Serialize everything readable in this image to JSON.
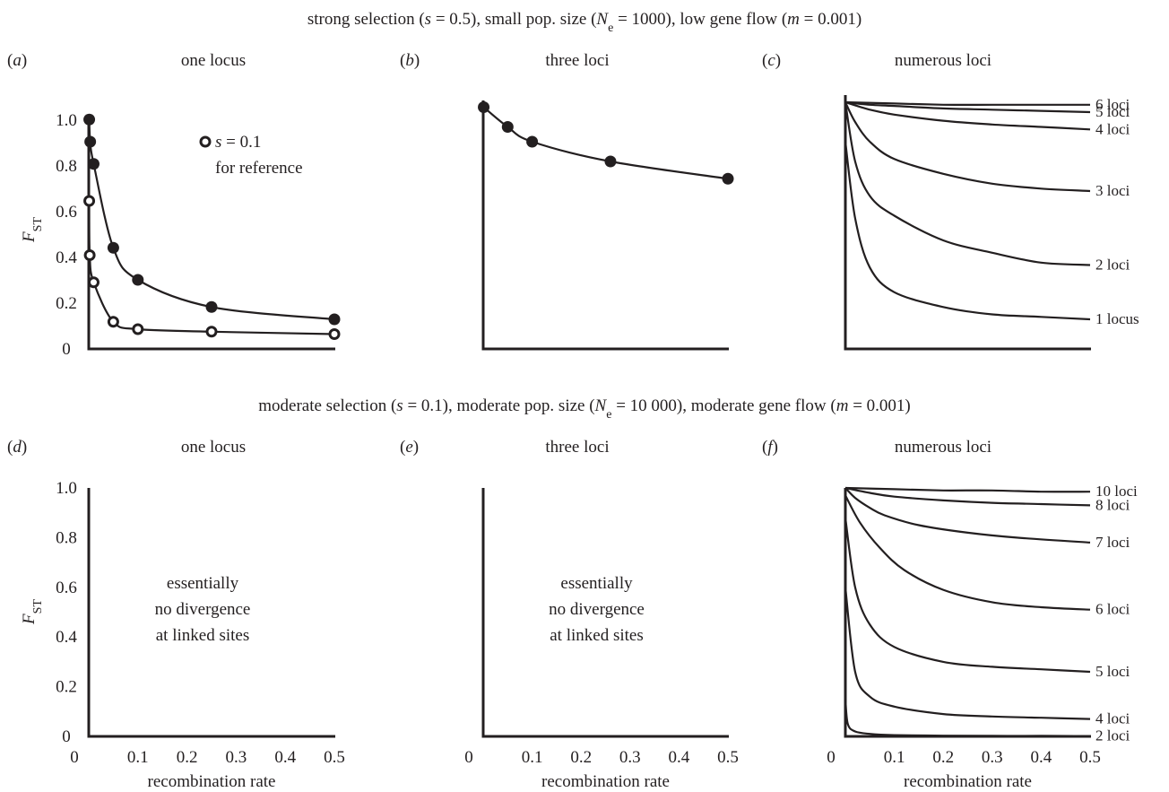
{
  "figure": {
    "row1_title": "strong selection (s = 0.5), small pop. size (Ne = 1000), low gene flow (m = 0.001)",
    "row2_title": "moderate selection (s = 0.1), moderate pop. size (Ne = 10 000), moderate gene flow (m = 0.001)"
  },
  "chart_data": [
    {
      "panel": "(a)",
      "title": "one locus",
      "type": "scatter",
      "ylabel": "FST",
      "xlabel": "",
      "xlim": [
        0,
        0.5
      ],
      "ylim": [
        0,
        1.0
      ],
      "yticks": [
        "0",
        "0.2",
        "0.4",
        "0.6",
        "0.8",
        "1.0"
      ],
      "xticks": [],
      "annotation": [
        "s = 0.1",
        "for reference"
      ],
      "series": [
        {
          "name": "",
          "marker": "filled",
          "x": [
            0.001,
            0.003,
            0.01,
            0.05,
            0.1,
            0.25,
            0.5
          ],
          "y": [
            0.93,
            0.84,
            0.75,
            0.41,
            0.28,
            0.17,
            0.12
          ]
        },
        {
          "name": "s = 0.1",
          "marker": "open",
          "x": [
            0.001,
            0.002,
            0.01,
            0.05,
            0.1,
            0.25,
            0.5
          ],
          "y": [
            0.6,
            0.38,
            0.27,
            0.11,
            0.08,
            0.07,
            0.06
          ]
        }
      ]
    },
    {
      "panel": "(b)",
      "title": "three loci",
      "type": "scatter",
      "xlim": [
        0,
        0.5
      ],
      "ylim": [
        0,
        1.0
      ],
      "series": [
        {
          "name": "",
          "marker": "filled",
          "x": [
            0.001,
            0.05,
            0.1,
            0.26,
            0.5
          ],
          "y": [
            0.98,
            0.9,
            0.84,
            0.76,
            0.69
          ]
        }
      ]
    },
    {
      "panel": "(c)",
      "title": "numerous loci",
      "type": "line",
      "xlim": [
        0,
        0.5
      ],
      "ylim": [
        0,
        1.0
      ],
      "series": [
        {
          "name": "6 loci",
          "x": [
            0,
            0.1,
            0.2,
            0.3,
            0.4,
            0.5
          ],
          "y": [
            1.0,
            0.995,
            0.99,
            0.99,
            0.99,
            0.99
          ]
        },
        {
          "name": "5 loci",
          "x": [
            0,
            0.05,
            0.1,
            0.2,
            0.3,
            0.4,
            0.5
          ],
          "y": [
            1.0,
            0.99,
            0.985,
            0.975,
            0.97,
            0.965,
            0.96
          ]
        },
        {
          "name": "4 loci",
          "x": [
            0,
            0.05,
            0.1,
            0.2,
            0.3,
            0.4,
            0.5
          ],
          "y": [
            1.0,
            0.97,
            0.95,
            0.925,
            0.91,
            0.9,
            0.89
          ]
        },
        {
          "name": "3 loci",
          "x": [
            0,
            0.02,
            0.05,
            0.1,
            0.2,
            0.3,
            0.4,
            0.5
          ],
          "y": [
            1.0,
            0.92,
            0.84,
            0.77,
            0.71,
            0.67,
            0.65,
            0.64
          ]
        },
        {
          "name": "2 loci",
          "x": [
            0,
            0.02,
            0.05,
            0.1,
            0.2,
            0.3,
            0.4,
            0.5
          ],
          "y": [
            1.0,
            0.76,
            0.62,
            0.54,
            0.44,
            0.39,
            0.35,
            0.34
          ]
        },
        {
          "name": "1 locus",
          "x": [
            0,
            0.02,
            0.05,
            0.1,
            0.2,
            0.3,
            0.4,
            0.5
          ],
          "y": [
            0.84,
            0.53,
            0.33,
            0.23,
            0.17,
            0.14,
            0.13,
            0.12
          ]
        }
      ]
    },
    {
      "panel": "(d)",
      "title": "one locus",
      "type": "line",
      "ylabel": "FST",
      "xlabel": "recombination rate",
      "xlim": [
        0,
        0.5
      ],
      "ylim": [
        0,
        1.0
      ],
      "yticks": [
        "0",
        "0.2",
        "0.4",
        "0.6",
        "0.8",
        "1.0"
      ],
      "xticks": [
        "0",
        "0.1",
        "0.2",
        "0.3",
        "0.4",
        "0.5"
      ],
      "annotation": [
        "essentially",
        "no divergence",
        "at linked sites"
      ],
      "series": []
    },
    {
      "panel": "(e)",
      "title": "three loci",
      "type": "line",
      "xlabel": "recombination rate",
      "xlim": [
        0,
        0.5
      ],
      "ylim": [
        0,
        1.0
      ],
      "xticks": [
        "0",
        "0.1",
        "0.2",
        "0.3",
        "0.4",
        "0.5"
      ],
      "annotation": [
        "essentially",
        "no divergence",
        "at linked sites"
      ],
      "series": []
    },
    {
      "panel": "(f)",
      "title": "numerous loci",
      "type": "line",
      "xlabel": "recombination rate",
      "xlim": [
        0,
        0.5
      ],
      "ylim": [
        0,
        1.0
      ],
      "xticks": [
        "0",
        "0.1",
        "0.2",
        "0.3",
        "0.4",
        "0.5"
      ],
      "series": [
        {
          "name": "10 loci",
          "x": [
            0,
            0.1,
            0.2,
            0.3,
            0.4,
            0.5
          ],
          "y": [
            1.0,
            0.995,
            0.99,
            0.99,
            0.985,
            0.985
          ]
        },
        {
          "name": "8 loci",
          "x": [
            0,
            0.05,
            0.1,
            0.2,
            0.3,
            0.4,
            0.5
          ],
          "y": [
            1.0,
            0.98,
            0.965,
            0.95,
            0.94,
            0.935,
            0.93
          ]
        },
        {
          "name": "7 loci",
          "x": [
            0,
            0.02,
            0.05,
            0.08,
            0.15,
            0.25,
            0.35,
            0.5
          ],
          "y": [
            1.0,
            0.96,
            0.92,
            0.89,
            0.85,
            0.82,
            0.8,
            0.78
          ]
        },
        {
          "name": "6 loci",
          "x": [
            0,
            0.03,
            0.07,
            0.12,
            0.2,
            0.3,
            0.4,
            0.5
          ],
          "y": [
            0.97,
            0.86,
            0.76,
            0.67,
            0.59,
            0.54,
            0.52,
            0.51
          ]
        },
        {
          "name": "5 loci",
          "x": [
            0,
            0.02,
            0.05,
            0.1,
            0.2,
            0.3,
            0.4,
            0.5
          ],
          "y": [
            0.88,
            0.6,
            0.45,
            0.36,
            0.3,
            0.28,
            0.27,
            0.26
          ]
        },
        {
          "name": "4 loci",
          "x": [
            0,
            0.02,
            0.05,
            0.1,
            0.2,
            0.3,
            0.4,
            0.5
          ],
          "y": [
            0.6,
            0.26,
            0.16,
            0.12,
            0.09,
            0.08,
            0.075,
            0.07
          ]
        },
        {
          "name": "2 loci",
          "x": [
            0,
            0.005,
            0.02,
            0.05,
            0.1,
            0.2,
            0.3,
            0.4,
            0.5
          ],
          "y": [
            0.15,
            0.05,
            0.02,
            0.01,
            0.005,
            0.003,
            0.002,
            0.002,
            0.001
          ]
        }
      ]
    }
  ]
}
